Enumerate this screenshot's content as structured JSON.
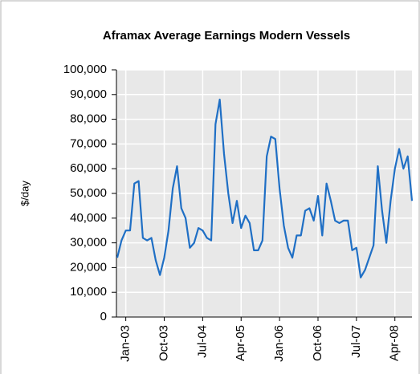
{
  "chart_data": {
    "type": "line",
    "title": "Aframax Average Earnings Modern Vessels",
    "y_label": "$/day",
    "categories": [
      null,
      null,
      "Jan-03",
      null,
      null,
      null,
      null,
      null,
      null,
      null,
      null,
      "Oct-03",
      null,
      null,
      null,
      null,
      null,
      null,
      null,
      null,
      "Jul-04",
      null,
      null,
      null,
      null,
      null,
      null,
      null,
      null,
      "Apr-05",
      null,
      null,
      null,
      null,
      null,
      null,
      null,
      null,
      "Jan-06",
      null,
      null,
      null,
      null,
      null,
      null,
      null,
      null,
      "Oct-06",
      null,
      null,
      null,
      null,
      null,
      null,
      null,
      null,
      "Jul-07",
      null,
      null,
      null,
      null,
      null,
      null,
      null,
      null,
      "Apr-08",
      null,
      null,
      null,
      null
    ],
    "values": [
      24000,
      31000,
      35000,
      35000,
      54000,
      55000,
      32000,
      31000,
      32000,
      23000,
      17000,
      24000,
      35000,
      52000,
      61000,
      44000,
      40000,
      28000,
      30000,
      36000,
      35000,
      32000,
      31000,
      78000,
      88000,
      66000,
      50000,
      38000,
      47000,
      36000,
      41000,
      38000,
      27000,
      27000,
      31000,
      65000,
      73000,
      72000,
      52000,
      37000,
      28000,
      24000,
      33000,
      33000,
      43000,
      44000,
      39000,
      49000,
      33000,
      54000,
      47000,
      39000,
      38000,
      39000,
      39000,
      27000,
      28000,
      16000,
      19000,
      24000,
      29000,
      61000,
      43000,
      30000,
      47000,
      60000,
      68000,
      60000,
      65000,
      47000
    ],
    "color": "#1f6fc5",
    "ylim": [
      0,
      100000
    ],
    "yticks": [
      0,
      {
        "value": 10000,
        "label": "10,000"
      },
      {
        "value": 20000,
        "label": "20,000"
      },
      {
        "value": 30000,
        "label": "30,000"
      },
      {
        "value": 40000,
        "label": "40,000"
      },
      {
        "value": 50000,
        "label": "50,000"
      },
      {
        "value": 60000,
        "label": "60,000"
      },
      {
        "value": 70000,
        "label": "70,000"
      },
      {
        "value": 80000,
        "label": "80,000"
      },
      {
        "value": 90000,
        "label": "90,000"
      },
      {
        "value": 100000,
        "label": "100,000"
      }
    ],
    "grid": true
  }
}
